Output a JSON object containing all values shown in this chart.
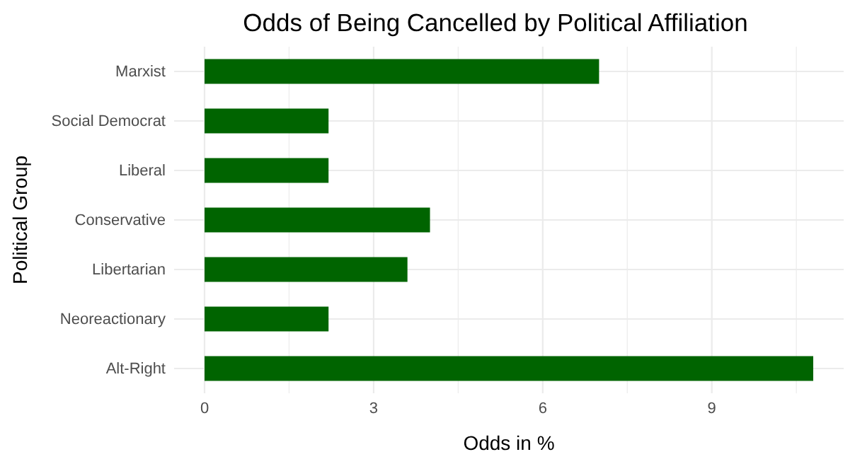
{
  "chart_data": {
    "type": "bar",
    "orientation": "horizontal",
    "title": "Odds of Being Cancelled by Political Affiliation",
    "xlabel": "Odds in %",
    "ylabel": "Political Group",
    "categories": [
      "Marxist",
      "Social Democrat",
      "Liberal",
      "Conservative",
      "Libertarian",
      "Neoreactionary",
      "Alt-Right"
    ],
    "values": [
      7.0,
      2.2,
      2.2,
      4.0,
      3.6,
      2.2,
      10.8
    ],
    "color": "#006400",
    "xlim": [
      -0.54,
      11.34
    ],
    "xticks": [
      0,
      {
        "value": 1.5,
        "label": null
      },
      3,
      {
        "value": 4.5,
        "label": null
      },
      6,
      {
        "value": 7.5,
        "label": null
      },
      9,
      {
        "value": 10.5,
        "label": null
      }
    ],
    "grid": true
  }
}
